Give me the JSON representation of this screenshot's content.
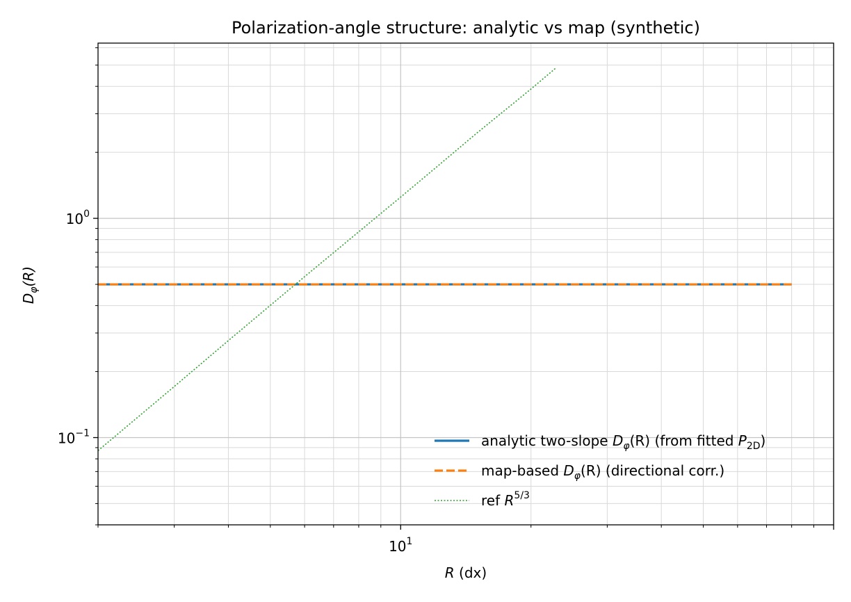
{
  "chart_data": {
    "type": "line",
    "title": "Polarization-angle structure: analytic vs map (synthetic)",
    "xlabel": {
      "var": "R",
      "unit": " (dx)"
    },
    "ylabel": {
      "sym": "D",
      "sub": "φ",
      "tail": "(R)"
    },
    "xscale": "log",
    "yscale": "log",
    "xlim": [
      2,
      100
    ],
    "ylim": [
      0.04,
      6.3
    ],
    "x_ticks": [
      {
        "value": 10,
        "base": "10",
        "exp": "1"
      }
    ],
    "y_ticks": [
      {
        "value": 0.1,
        "base": "10",
        "exp": "−1"
      },
      {
        "value": 1,
        "base": "10",
        "exp": "0"
      }
    ],
    "grid": true,
    "legend_position": "lower-right",
    "series": [
      {
        "legend": {
          "pre": "analytic two-slope ",
          "sym": "D",
          "sub": "φ",
          "mid": "(R) (from fitted ",
          "sym2": "P",
          "sub2": "2D",
          "post": ")"
        },
        "color": "#1f77b4",
        "style": "solid",
        "x": [
          2,
          2.5,
          3,
          4,
          5,
          6,
          8,
          10,
          12,
          15,
          20,
          25,
          30,
          40,
          50,
          60,
          80
        ],
        "y": [
          0.5,
          0.5,
          0.5,
          0.5,
          0.5,
          0.5,
          0.5,
          0.5,
          0.5,
          0.5,
          0.5,
          0.5,
          0.5,
          0.5,
          0.5,
          0.5,
          0.5
        ]
      },
      {
        "legend": {
          "pre": "map-based ",
          "sym": "D",
          "sub": "φ",
          "mid": "(R) (directional corr.)"
        },
        "color": "#ff7f0e",
        "style": "dashed",
        "x": [
          2,
          2.5,
          3,
          4,
          5,
          6,
          8,
          10,
          12,
          15,
          20,
          25,
          30,
          40,
          50,
          60,
          80
        ],
        "y": [
          0.5,
          0.5,
          0.5,
          0.5,
          0.5,
          0.5,
          0.5,
          0.5,
          0.5,
          0.5,
          0.5,
          0.5,
          0.5,
          0.5,
          0.5,
          0.5,
          0.5
        ]
      },
      {
        "legend": {
          "pre": "ref ",
          "sym": "R",
          "sup": "5/3"
        },
        "color": "#2ca02c",
        "style": "dotted",
        "x": [
          2,
          3,
          4,
          5,
          6,
          8,
          10,
          12,
          15,
          20,
          22.8
        ],
        "y": [
          0.0872,
          0.171,
          0.277,
          0.401,
          0.542,
          0.868,
          1.25,
          1.69,
          2.45,
          3.89,
          4.84
        ]
      }
    ]
  }
}
